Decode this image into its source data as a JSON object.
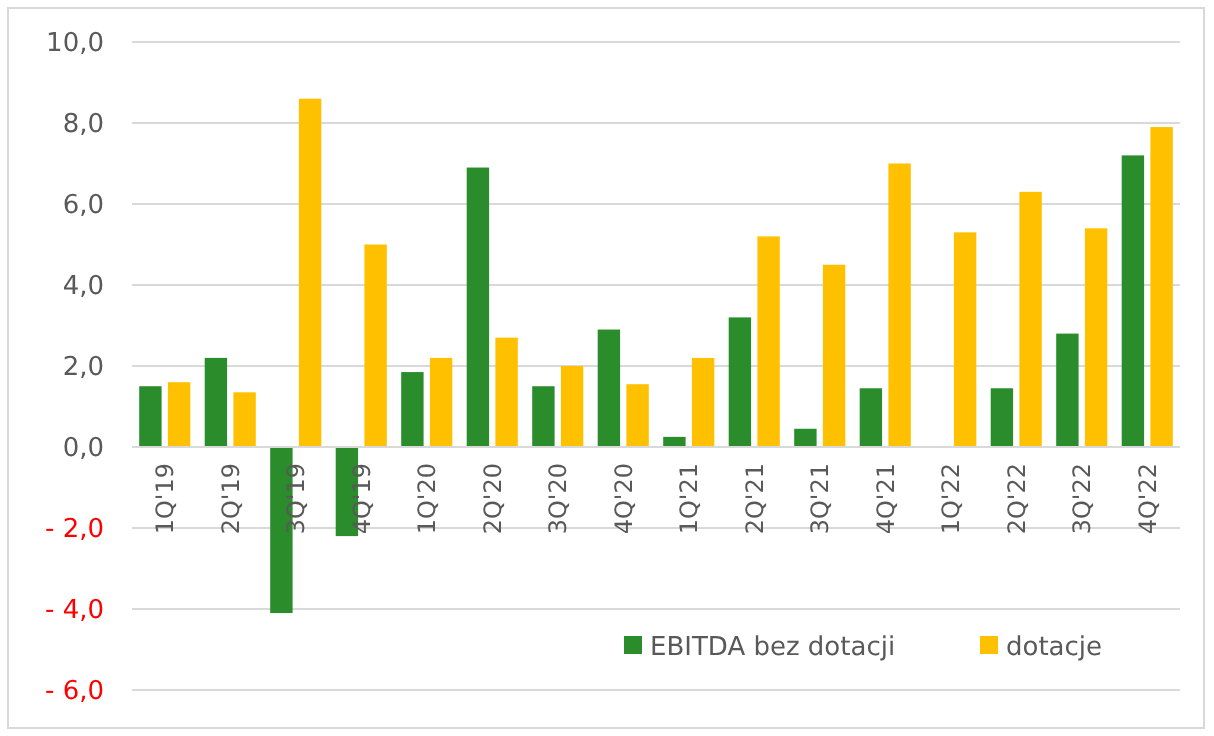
{
  "chart_data": {
    "type": "bar",
    "categories": [
      "1Q'19",
      "2Q'19",
      "3Q'19",
      "4Q'19",
      "1Q'20",
      "2Q'20",
      "3Q'20",
      "4Q'20",
      "1Q'21",
      "2Q'21",
      "3Q'21",
      "4Q'21",
      "1Q'22",
      "2Q'22",
      "3Q'22",
      "4Q'22"
    ],
    "series": [
      {
        "name": "EBITDA bez dotacji",
        "color": "#2a8c2a",
        "values": [
          1.5,
          2.2,
          -4.1,
          -2.2,
          1.85,
          6.9,
          1.5,
          2.9,
          0.25,
          3.2,
          0.45,
          1.45,
          null,
          1.45,
          2.8,
          7.2
        ]
      },
      {
        "name": "dotacje",
        "color": "#ffc000",
        "values": [
          1.6,
          1.35,
          8.6,
          5.0,
          2.2,
          2.7,
          2.0,
          1.55,
          2.2,
          5.2,
          4.5,
          7.0,
          5.3,
          6.3,
          5.4,
          7.9
        ]
      }
    ],
    "ylim": [
      -6,
      10
    ],
    "yticks": [
      {
        "value": -6,
        "label": "- 6,0"
      },
      {
        "value": -4,
        "label": "- 4,0"
      },
      {
        "value": -2,
        "label": "- 2,0"
      },
      {
        "value": 0,
        "label": "0,0"
      },
      {
        "value": 2,
        "label": "2,0"
      },
      {
        "value": 4,
        "label": "4,0"
      },
      {
        "value": 6,
        "label": "6,0"
      },
      {
        "value": 8,
        "label": "8,0"
      },
      {
        "value": 10,
        "label": "10,0"
      }
    ],
    "grid": "y",
    "legend": "bottom right"
  }
}
